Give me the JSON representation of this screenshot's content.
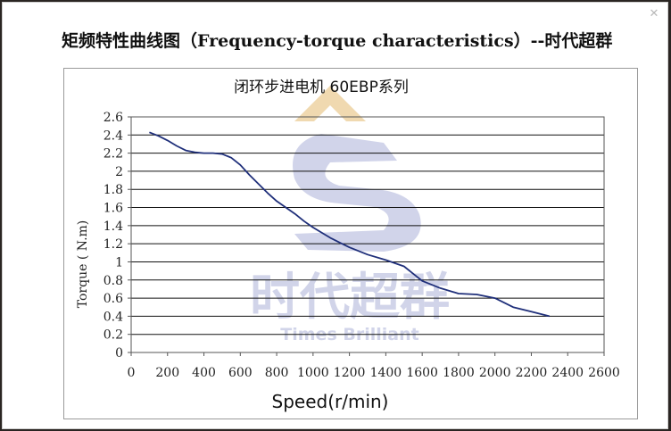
{
  "page": {
    "heading": "矩频特性曲线图（Frequency-torque characteristics）--时代超群",
    "close_icon": "close-icon"
  },
  "watermark": {
    "brand_cn": "时代超群",
    "brand_en": "Times Brilliant",
    "color": "#c9cde6"
  },
  "chart_data": {
    "type": "line",
    "title": "闭环步进电机 60EBP系列",
    "xlabel": "Speed(r/min)",
    "ylabel": "Torque ( N.m)",
    "xlim": [
      0,
      2600
    ],
    "ylim": [
      0,
      2.6
    ],
    "xticks": [
      0,
      200,
      400,
      600,
      800,
      1000,
      1200,
      1400,
      1600,
      1800,
      2000,
      2200,
      2400,
      2600
    ],
    "yticks": [
      "0",
      "0.2",
      "0.4",
      "0.6",
      "0.8",
      "1",
      "1.2",
      "1.4",
      "1.6",
      "1.8",
      "2",
      "2.2",
      "2.4",
      "2.6"
    ],
    "grid": "horizontal",
    "line_color": "#1f2f7a",
    "series": [
      {
        "x": [
          100,
          150,
          200,
          250,
          300,
          350,
          400,
          450,
          500,
          550,
          600,
          650,
          700,
          750,
          800,
          850,
          900,
          950,
          1000,
          1100,
          1200,
          1300,
          1400,
          1500,
          1550,
          1600,
          1700,
          1800,
          1900,
          2000,
          2100,
          2200,
          2300
        ],
        "y": [
          2.43,
          2.39,
          2.34,
          2.28,
          2.23,
          2.21,
          2.2,
          2.2,
          2.19,
          2.15,
          2.07,
          1.96,
          1.86,
          1.76,
          1.67,
          1.6,
          1.53,
          1.45,
          1.38,
          1.26,
          1.16,
          1.08,
          1.02,
          0.95,
          0.87,
          0.79,
          0.71,
          0.65,
          0.64,
          0.6,
          0.5,
          0.45,
          0.4
        ]
      }
    ]
  }
}
